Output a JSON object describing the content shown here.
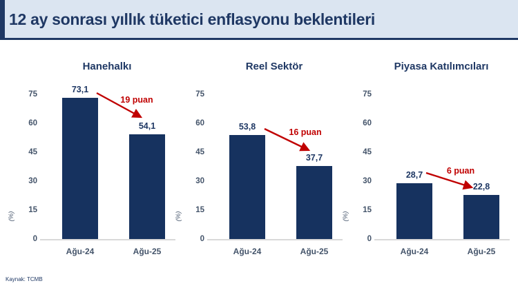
{
  "header": {
    "title": "12 ay sonrası yıllık tüketici enflasyonu beklentileri"
  },
  "footer": {
    "source": "Kaynak: TCMB"
  },
  "colors": {
    "navy_text": "#1f3864",
    "bar_fill": "#16325f",
    "accent_red": "#c00000",
    "axis_text": "#44546a",
    "header_bg": "#dbe5f1",
    "baseline_gray": "#d9d9d9"
  },
  "chart_data": [
    {
      "type": "bar",
      "title": "Hanehalkı",
      "categories": [
        "Ağu-24",
        "Ağu-25"
      ],
      "values": [
        73.1,
        54.1
      ],
      "value_labels": [
        "73,1",
        "54,1"
      ],
      "change_label": "19 puan",
      "ylabel": "(%)",
      "yticks": [
        0,
        15,
        30,
        45,
        60,
        75
      ],
      "ylim": [
        0,
        75
      ],
      "grid": false,
      "legend": "none"
    },
    {
      "type": "bar",
      "title": "Reel Sektör",
      "categories": [
        "Ağu-24",
        "Ağu-25"
      ],
      "values": [
        53.8,
        37.7
      ],
      "value_labels": [
        "53,8",
        "37,7"
      ],
      "change_label": "16 puan",
      "ylabel": "(%)",
      "yticks": [
        0,
        15,
        30,
        45,
        60,
        75
      ],
      "ylim": [
        0,
        75
      ],
      "grid": false,
      "legend": "none"
    },
    {
      "type": "bar",
      "title": "Piyasa Katılımcıları",
      "categories": [
        "Ağu-24",
        "Ağu-25"
      ],
      "values": [
        28.7,
        22.8
      ],
      "value_labels": [
        "28,7",
        "22,8"
      ],
      "change_label": "6 puan",
      "ylabel": "(%)",
      "yticks": [
        0,
        15,
        30,
        45,
        60,
        75
      ],
      "ylim": [
        0,
        75
      ],
      "grid": false,
      "legend": "none"
    }
  ]
}
